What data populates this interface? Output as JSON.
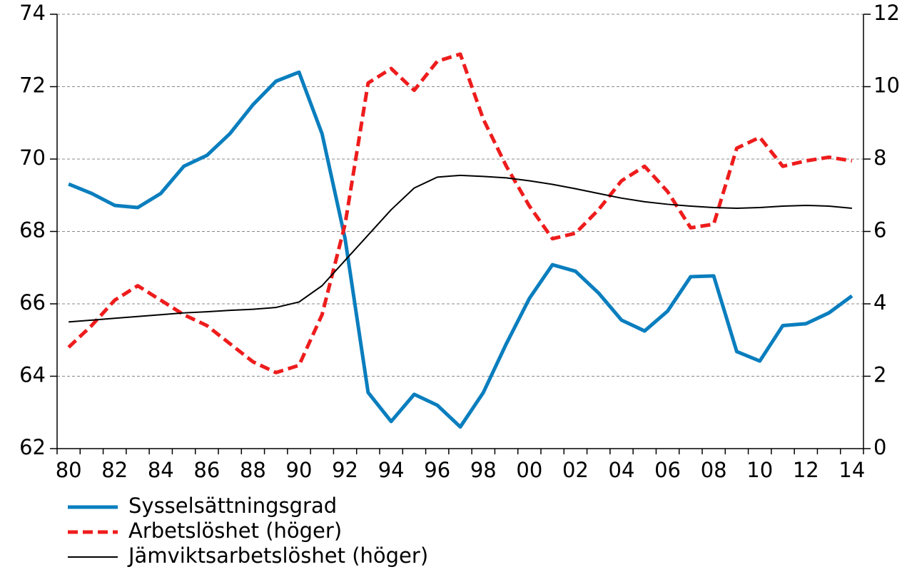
{
  "chart_data": {
    "type": "line",
    "categories": [
      "80",
      null,
      "82",
      null,
      "84",
      null,
      "86",
      null,
      "88",
      null,
      "90",
      null,
      "92",
      null,
      "94",
      null,
      "96",
      null,
      "98",
      null,
      "00",
      null,
      "02",
      null,
      "04",
      null,
      "06",
      null,
      "08",
      null,
      "10",
      null,
      "12",
      null,
      "14"
    ],
    "series": [
      {
        "name": "Sysselsättningsgrad",
        "color": "#0a7ebe",
        "values": [
          69.31,
          69.05,
          68.72,
          68.66,
          69.05,
          69.8,
          70.1,
          70.7,
          71.5,
          72.15,
          72.4,
          70.7,
          67.8,
          63.55,
          62.75,
          63.5,
          63.2,
          62.6,
          63.55,
          64.9,
          66.15,
          67.08,
          66.9,
          66.3,
          65.55,
          65.25,
          65.8,
          66.75,
          66.77,
          64.68,
          64.42,
          65.4,
          65.45,
          65.75,
          66.22
        ]
      },
      {
        "name": "Arbetslöshet (höger)",
        "color": "#ee1c1c",
        "axis": "y2",
        "dash": true,
        "values": [
          2.8,
          3.4,
          4.1,
          4.5,
          4.1,
          3.7,
          3.4,
          2.9,
          2.4,
          2.1,
          2.3,
          3.7,
          6.2,
          10.1,
          10.5,
          9.9,
          10.7,
          10.9,
          9.1,
          7.8,
          6.7,
          5.8,
          5.95,
          6.6,
          7.4,
          7.8,
          7.1,
          6.1,
          6.2,
          8.3,
          8.6,
          7.8,
          7.95,
          8.05,
          7.95
        ]
      },
      {
        "name": "Jämviktsarbetslöshet (höger)",
        "color": "#000000",
        "axis": "y2",
        "thin": true,
        "values": [
          3.5,
          3.55,
          3.6,
          3.65,
          3.7,
          3.75,
          3.78,
          3.82,
          3.85,
          3.9,
          4.05,
          4.5,
          5.2,
          5.9,
          6.6,
          7.2,
          7.5,
          7.55,
          7.52,
          7.48,
          7.4,
          7.3,
          7.18,
          7.05,
          6.92,
          6.82,
          6.75,
          6.7,
          6.66,
          6.64,
          6.66,
          6.7,
          6.72,
          6.7,
          6.64
        ]
      }
    ],
    "ylim": [
      62,
      74
    ],
    "yticks": [
      62,
      64,
      66,
      68,
      70,
      72,
      74
    ],
    "y2lim": [
      0,
      12
    ],
    "y2ticks": [
      0,
      2,
      4,
      6,
      8,
      10,
      12
    ],
    "grid": true
  }
}
